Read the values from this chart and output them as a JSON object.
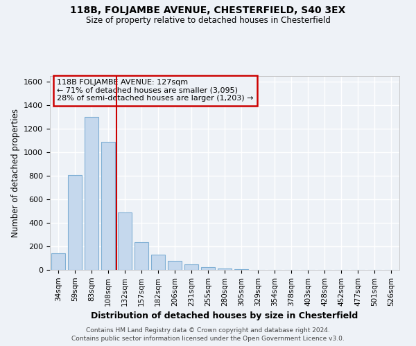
{
  "title1": "118B, FOLJAMBE AVENUE, CHESTERFIELD, S40 3EX",
  "title2": "Size of property relative to detached houses in Chesterfield",
  "xlabel": "Distribution of detached houses by size in Chesterfield",
  "ylabel": "Number of detached properties",
  "categories": [
    "34sqm",
    "59sqm",
    "83sqm",
    "108sqm",
    "132sqm",
    "157sqm",
    "182sqm",
    "206sqm",
    "231sqm",
    "255sqm",
    "280sqm",
    "305sqm",
    "329sqm",
    "354sqm",
    "378sqm",
    "403sqm",
    "428sqm",
    "452sqm",
    "477sqm",
    "501sqm",
    "526sqm"
  ],
  "values": [
    140,
    810,
    1300,
    1090,
    490,
    235,
    130,
    75,
    50,
    25,
    10,
    3,
    1,
    1,
    0,
    0,
    0,
    0,
    0,
    0,
    0
  ],
  "bar_color": "#c5d8ed",
  "bar_edge_color": "#7fafd4",
  "vline_color": "#cc0000",
  "vline_pos": 4,
  "ylim": [
    0,
    1650
  ],
  "yticks": [
    0,
    200,
    400,
    600,
    800,
    1000,
    1200,
    1400,
    1600
  ],
  "annotation_text": "118B FOLJAMBE AVENUE: 127sqm\n← 71% of detached houses are smaller (3,095)\n28% of semi-detached houses are larger (1,203) →",
  "annotation_box_color": "#cc0000",
  "footer1": "Contains HM Land Registry data © Crown copyright and database right 2024.",
  "footer2": "Contains public sector information licensed under the Open Government Licence v3.0.",
  "bg_color": "#eef2f7",
  "grid_color": "#ffffff"
}
